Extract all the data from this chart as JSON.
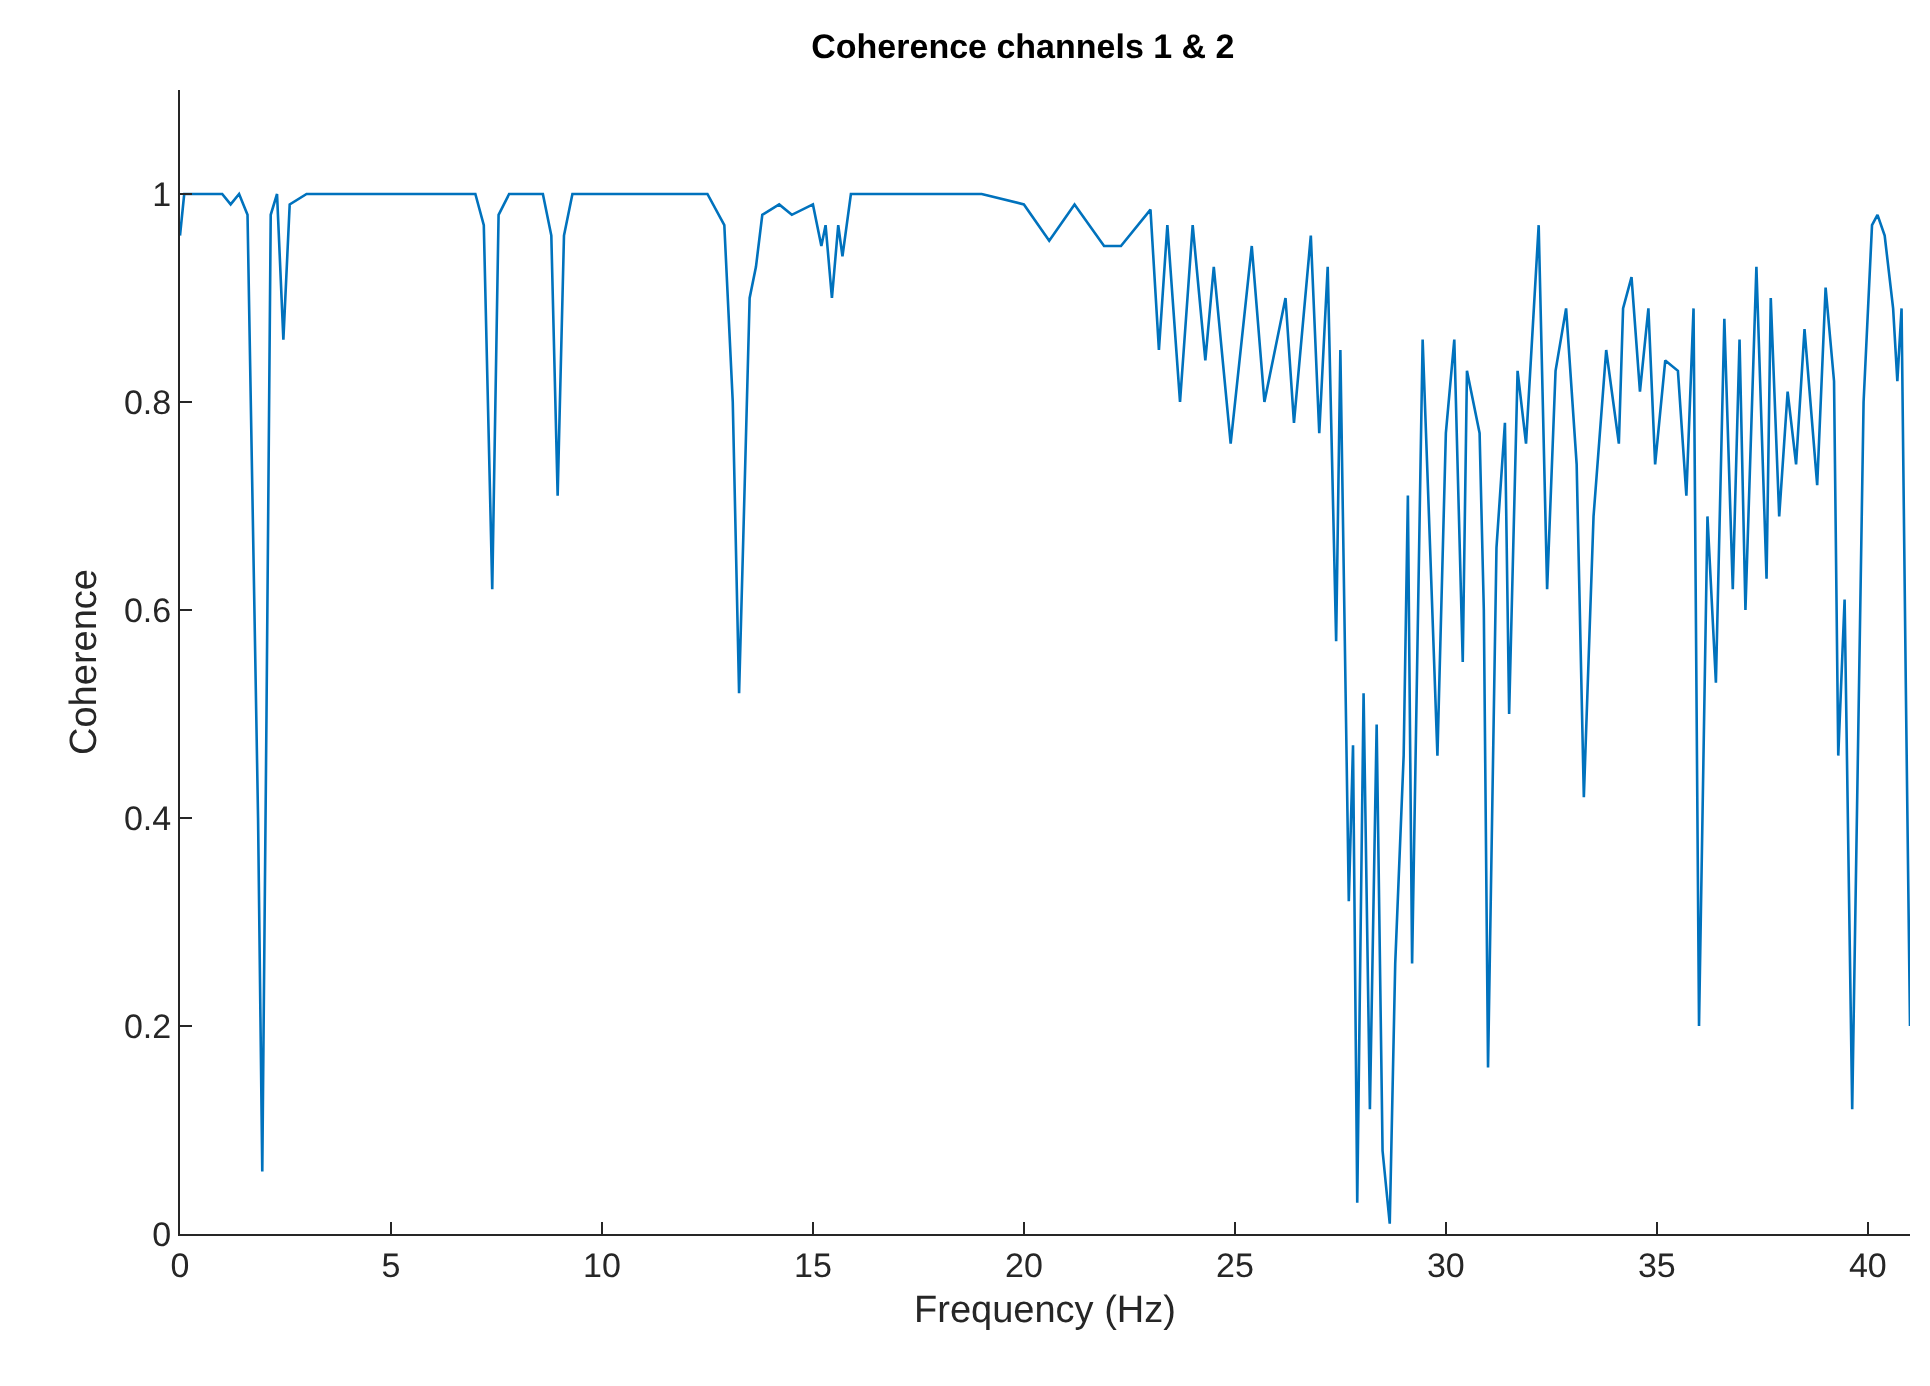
{
  "chart_data": {
    "type": "line",
    "title": "Coherence channels 1 & 2",
    "xlabel": "Frequency (Hz)",
    "ylabel": "Coherence",
    "xlim": [
      0,
      41
    ],
    "ylim": [
      0,
      1.1
    ],
    "xticks": [
      0,
      5,
      10,
      15,
      20,
      25,
      30,
      35,
      40
    ],
    "yticks": [
      0,
      0.2,
      0.4,
      0.6,
      0.8,
      1
    ],
    "marker": "none",
    "line_style": "solid",
    "series": [
      {
        "color": "#0072bd",
        "x": [
          0,
          0.1,
          1.0,
          1.2,
          1.4,
          1.6,
          1.85,
          1.95,
          2.05,
          2.15,
          2.3,
          2.45,
          2.6,
          3,
          7.0,
          7.2,
          7.4,
          7.55,
          7.8,
          8.6,
          8.8,
          8.95,
          9.1,
          9.3,
          12.5,
          12.9,
          13.1,
          13.25,
          13.35,
          13.5,
          13.65,
          13.8,
          14.2,
          14.5,
          15.0,
          15.2,
          15.3,
          15.45,
          15.6,
          15.7,
          15.9,
          16.5,
          19,
          20.0,
          20.6,
          21.2,
          21.9,
          22.3,
          23.0,
          23.2,
          23.4,
          23.7,
          24.0,
          24.3,
          24.5,
          24.9,
          25.4,
          25.7,
          26.2,
          26.4,
          26.8,
          27.0,
          27.2,
          27.4,
          27.5,
          27.7,
          27.8,
          27.9,
          28.05,
          28.2,
          28.36,
          28.5,
          28.67,
          28.8,
          29.0,
          29.1,
          29.2,
          29.45,
          29.6,
          29.8,
          30.0,
          30.2,
          30.4,
          30.5,
          30.8,
          30.9,
          31.0,
          31.2,
          31.4,
          31.5,
          31.7,
          31.9,
          32.2,
          32.4,
          32.6,
          32.85,
          33.1,
          33.27,
          33.5,
          33.8,
          34.1,
          34.2,
          34.4,
          34.6,
          34.8,
          34.96,
          35.2,
          35.5,
          35.7,
          35.87,
          36.0,
          36.2,
          36.4,
          36.6,
          36.8,
          36.96,
          37.1,
          37.36,
          37.6,
          37.7,
          37.9,
          38.1,
          38.3,
          38.5,
          38.8,
          39.0,
          39.2,
          39.3,
          39.45,
          39.63,
          39.9,
          40.1,
          40.23,
          40.4,
          40.6,
          40.7,
          40.8,
          40.9,
          41.0
        ],
        "values": [
          0.96,
          1.0,
          1.0,
          0.99,
          1.0,
          0.98,
          0.4,
          0.06,
          0.5,
          0.98,
          1.0,
          0.86,
          0.99,
          1.0,
          1.0,
          0.97,
          0.62,
          0.98,
          1.0,
          1.0,
          0.96,
          0.71,
          0.96,
          1.0,
          1.0,
          0.97,
          0.8,
          0.52,
          0.67,
          0.9,
          0.93,
          0.98,
          0.99,
          0.98,
          0.99,
          0.95,
          0.97,
          0.9,
          0.97,
          0.94,
          1.0,
          1.0,
          1.0,
          0.99,
          0.955,
          0.99,
          0.95,
          0.95,
          0.985,
          0.85,
          0.97,
          0.8,
          0.97,
          0.84,
          0.93,
          0.76,
          0.95,
          0.8,
          0.9,
          0.78,
          0.96,
          0.77,
          0.93,
          0.57,
          0.85,
          0.32,
          0.47,
          0.03,
          0.52,
          0.12,
          0.49,
          0.08,
          0.01,
          0.26,
          0.46,
          0.71,
          0.26,
          0.86,
          0.69,
          0.46,
          0.77,
          0.86,
          0.55,
          0.83,
          0.77,
          0.6,
          0.16,
          0.66,
          0.78,
          0.5,
          0.83,
          0.76,
          0.97,
          0.62,
          0.83,
          0.89,
          0.74,
          0.42,
          0.69,
          0.85,
          0.76,
          0.89,
          0.92,
          0.81,
          0.89,
          0.74,
          0.84,
          0.83,
          0.71,
          0.89,
          0.2,
          0.69,
          0.53,
          0.88,
          0.62,
          0.86,
          0.6,
          0.93,
          0.63,
          0.9,
          0.69,
          0.81,
          0.74,
          0.87,
          0.72,
          0.91,
          0.82,
          0.46,
          0.61,
          0.12,
          0.8,
          0.97,
          0.98,
          0.96,
          0.89,
          0.82,
          0.89,
          0.53,
          0.2
        ]
      }
    ]
  }
}
